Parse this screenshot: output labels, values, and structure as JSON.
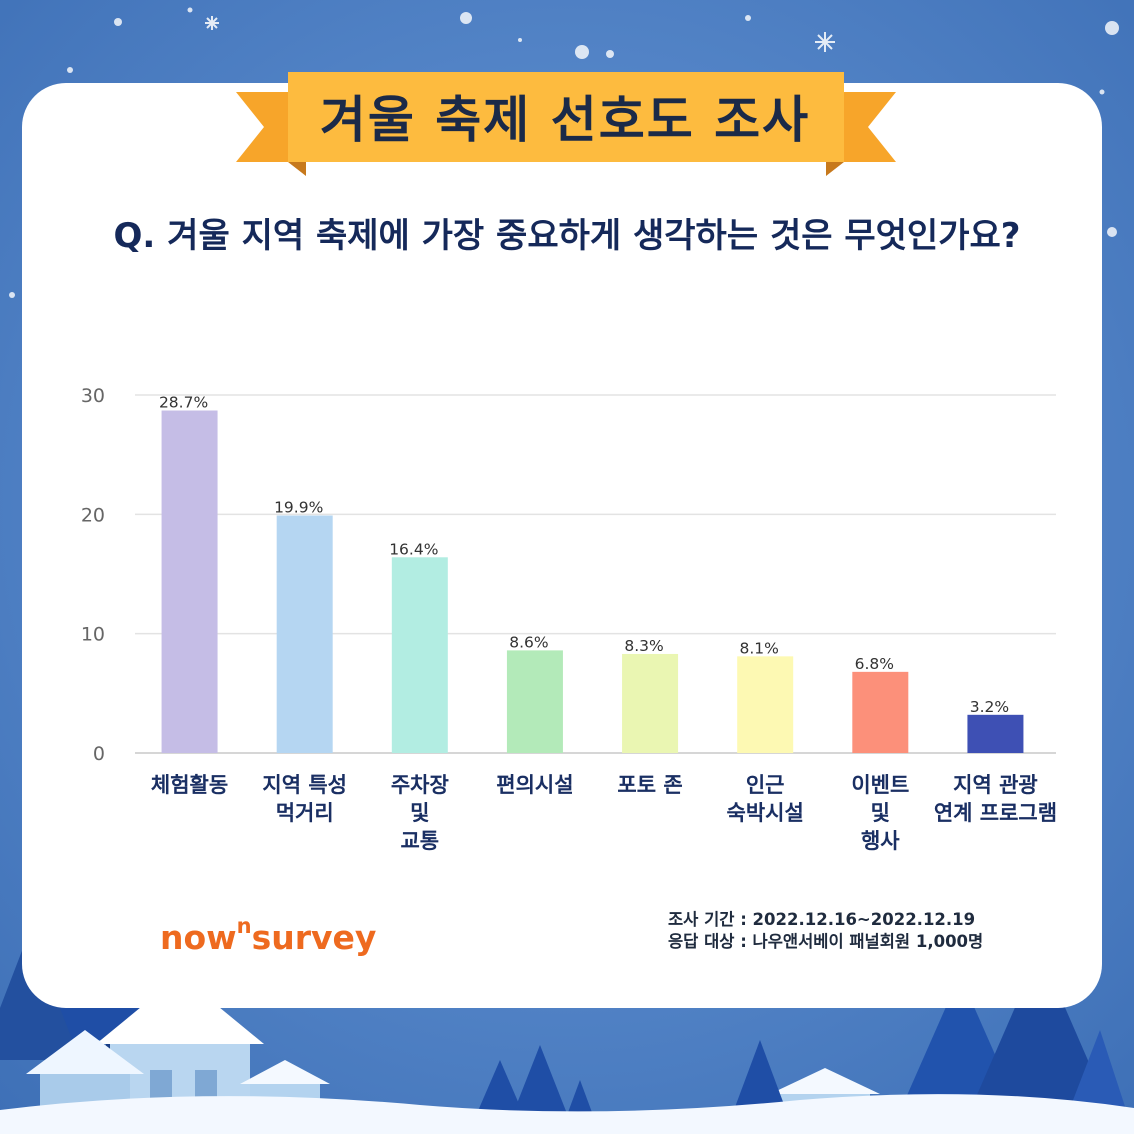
{
  "header": {
    "banner_title": "겨울 축제 선호도 조사",
    "question": "Q. 겨울 지역 축제에 가장 중요하게 생각하는 것은 무엇인가요?"
  },
  "chart_data": {
    "type": "bar",
    "categories": [
      [
        "체험활동"
      ],
      [
        "지역 특성",
        "먹거리"
      ],
      [
        "주차장",
        "및",
        "교통"
      ],
      [
        "편의시설"
      ],
      [
        "포토 존"
      ],
      [
        "인근",
        "숙박시설"
      ],
      [
        "이벤트",
        "및",
        "행사"
      ],
      [
        "지역 관광",
        "연계 프로그램"
      ]
    ],
    "values": [
      28.7,
      19.9,
      16.4,
      8.6,
      8.3,
      8.1,
      6.8,
      3.2
    ],
    "value_labels": [
      "28.7%",
      "19.9%",
      "16.4%",
      "8.6%",
      "8.3%",
      "8.1%",
      "6.8%",
      "3.2%"
    ],
    "bar_colors": [
      "#c5bde6",
      "#b5d6f2",
      "#b2ede2",
      "#b3eab9",
      "#eaf6b2",
      "#fdf9b3",
      "#fc907a",
      "#3e50b4"
    ],
    "yticks": [
      0,
      10,
      20,
      30
    ],
    "ylim": [
      0,
      30
    ],
    "grid": true,
    "xlabel": "",
    "ylabel": ""
  },
  "footer": {
    "brand_main": "now",
    "brand_sup": "n",
    "brand_tail": "survey",
    "survey_period": "조사 기간 : 2022.12.16~2022.12.19",
    "respondents": "응답 대상 : 나우앤서베이 패널회원 1,000명"
  },
  "colors": {
    "background": "#4a7fc4",
    "banner": "#fdbb3f",
    "title_text": "#1b2a48",
    "question_text": "#15295a",
    "brand": "#ee6a1f"
  }
}
